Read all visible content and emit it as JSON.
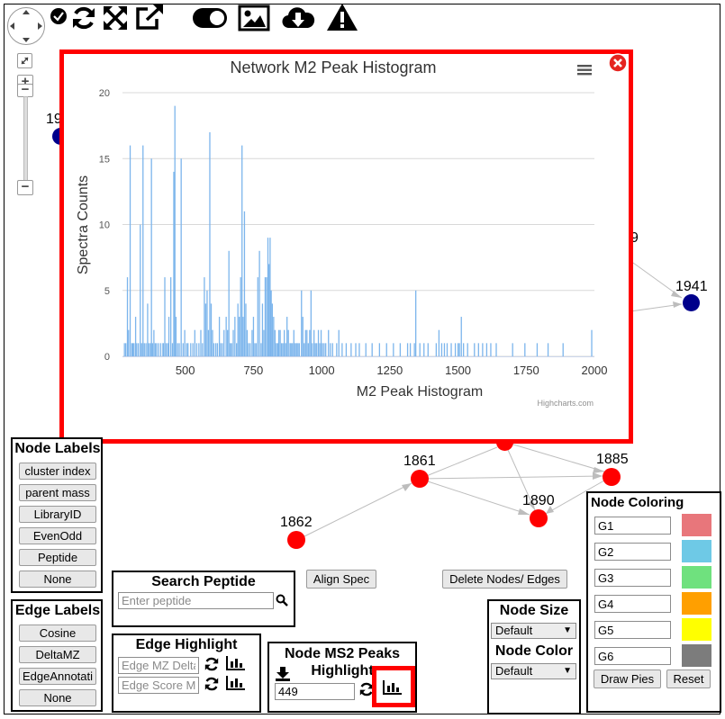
{
  "network": {
    "nodes": [
      {
        "label": "1941",
        "color": "#00008b"
      },
      {
        "label": "1861",
        "color": "#ff0000"
      },
      {
        "label": "1885",
        "color": "#ff0000"
      },
      {
        "label": "1890",
        "color": "#ff0000"
      },
      {
        "label": "1862",
        "color": "#ff0000"
      }
    ],
    "partial_labels": [
      "19",
      "9"
    ]
  },
  "toolbar": {
    "icons": [
      "pan-control-icon",
      "checkmark-icon",
      "refresh-icon",
      "expand-icon",
      "external-link-icon",
      "toggle-icon",
      "image-icon",
      "cloud-download-icon",
      "warning-icon"
    ]
  },
  "zoom": {
    "plus": "+",
    "minus": "−"
  },
  "histogram_popup": {
    "title": "Network M2 Peak Histogram",
    "credit": "Highcharts.com",
    "border_color": "#ff0000",
    "bar_color": "#7cb5ec"
  },
  "chart_data": {
    "type": "bar",
    "title": "Network M2 Peak Histogram",
    "xlabel": "M2 Peak Histogram",
    "ylabel": "Spectra Counts",
    "xlim": [
      270,
      2000
    ],
    "ylim": [
      0,
      20
    ],
    "xticks": [
      500,
      750,
      1000,
      1250,
      1500,
      1750,
      2000
    ],
    "yticks": [
      0,
      5,
      10,
      15,
      20
    ],
    "grid": true,
    "legend": "none",
    "bars": [
      [
        277,
        1
      ],
      [
        282,
        1
      ],
      [
        288,
        6
      ],
      [
        292,
        2
      ],
      [
        298,
        16
      ],
      [
        304,
        1
      ],
      [
        308,
        1
      ],
      [
        312,
        1
      ],
      [
        318,
        3
      ],
      [
        322,
        1
      ],
      [
        328,
        1
      ],
      [
        335,
        10
      ],
      [
        340,
        1
      ],
      [
        345,
        16
      ],
      [
        350,
        1
      ],
      [
        356,
        1
      ],
      [
        362,
        4
      ],
      [
        366,
        1
      ],
      [
        372,
        1
      ],
      [
        376,
        15
      ],
      [
        380,
        1
      ],
      [
        385,
        2
      ],
      [
        390,
        1
      ],
      [
        395,
        1
      ],
      [
        402,
        1
      ],
      [
        410,
        1
      ],
      [
        418,
        1
      ],
      [
        420,
        1
      ],
      [
        425,
        6
      ],
      [
        430,
        1
      ],
      [
        436,
        1
      ],
      [
        440,
        3
      ],
      [
        447,
        6
      ],
      [
        453,
        1
      ],
      [
        458,
        14
      ],
      [
        462,
        19
      ],
      [
        466,
        3
      ],
      [
        472,
        1
      ],
      [
        478,
        1
      ],
      [
        485,
        15
      ],
      [
        492,
        1
      ],
      [
        498,
        2
      ],
      [
        505,
        1
      ],
      [
        510,
        1
      ],
      [
        520,
        1
      ],
      [
        528,
        1
      ],
      [
        535,
        2
      ],
      [
        542,
        1
      ],
      [
        550,
        1
      ],
      [
        557,
        2
      ],
      [
        563,
        1
      ],
      [
        570,
        6
      ],
      [
        575,
        4
      ],
      [
        580,
        5
      ],
      [
        585,
        2
      ],
      [
        590,
        17
      ],
      [
        595,
        4
      ],
      [
        600,
        2
      ],
      [
        605,
        1
      ],
      [
        612,
        1
      ],
      [
        618,
        1
      ],
      [
        625,
        3
      ],
      [
        630,
        1
      ],
      [
        636,
        1
      ],
      [
        642,
        2
      ],
      [
        650,
        3
      ],
      [
        655,
        2
      ],
      [
        660,
        8
      ],
      [
        665,
        1
      ],
      [
        670,
        1
      ],
      [
        676,
        2
      ],
      [
        682,
        3
      ],
      [
        688,
        1
      ],
      [
        693,
        4
      ],
      [
        698,
        3
      ],
      [
        703,
        6
      ],
      [
        708,
        16
      ],
      [
        712,
        3
      ],
      [
        717,
        11
      ],
      [
        722,
        4
      ],
      [
        727,
        2
      ],
      [
        732,
        1
      ],
      [
        738,
        1
      ],
      [
        745,
        2
      ],
      [
        750,
        3
      ],
      [
        755,
        1
      ],
      [
        760,
        1
      ],
      [
        766,
        6
      ],
      [
        772,
        8
      ],
      [
        778,
        1
      ],
      [
        783,
        4
      ],
      [
        788,
        2
      ],
      [
        793,
        6
      ],
      [
        798,
        6
      ],
      [
        803,
        9
      ],
      [
        807,
        7
      ],
      [
        811,
        9
      ],
      [
        815,
        5
      ],
      [
        819,
        4
      ],
      [
        824,
        3
      ],
      [
        829,
        2
      ],
      [
        834,
        1
      ],
      [
        839,
        1
      ],
      [
        843,
        2
      ],
      [
        848,
        2
      ],
      [
        853,
        1
      ],
      [
        858,
        1
      ],
      [
        863,
        2
      ],
      [
        868,
        1
      ],
      [
        873,
        3
      ],
      [
        878,
        2
      ],
      [
        884,
        1
      ],
      [
        888,
        1
      ],
      [
        893,
        1
      ],
      [
        898,
        2
      ],
      [
        903,
        1
      ],
      [
        908,
        1
      ],
      [
        913,
        1
      ],
      [
        918,
        1
      ],
      [
        926,
        5
      ],
      [
        931,
        3
      ],
      [
        936,
        1
      ],
      [
        941,
        2
      ],
      [
        946,
        2
      ],
      [
        951,
        1
      ],
      [
        956,
        2
      ],
      [
        961,
        5
      ],
      [
        966,
        1
      ],
      [
        972,
        2
      ],
      [
        977,
        1
      ],
      [
        982,
        1
      ],
      [
        988,
        2
      ],
      [
        993,
        1
      ],
      [
        998,
        2
      ],
      [
        1003,
        1
      ],
      [
        1009,
        1
      ],
      [
        1015,
        1
      ],
      [
        1025,
        2
      ],
      [
        1032,
        1
      ],
      [
        1040,
        1
      ],
      [
        1055,
        1
      ],
      [
        1063,
        2
      ],
      [
        1075,
        1
      ],
      [
        1090,
        1
      ],
      [
        1108,
        1
      ],
      [
        1125,
        1
      ],
      [
        1138,
        1
      ],
      [
        1162,
        1
      ],
      [
        1185,
        1
      ],
      [
        1212,
        1
      ],
      [
        1238,
        1
      ],
      [
        1263,
        1
      ],
      [
        1288,
        1
      ],
      [
        1315,
        1
      ],
      [
        1325,
        1
      ],
      [
        1340,
        1
      ],
      [
        1345,
        5
      ],
      [
        1360,
        1
      ],
      [
        1375,
        1
      ],
      [
        1390,
        1
      ],
      [
        1420,
        1
      ],
      [
        1430,
        2
      ],
      [
        1440,
        1
      ],
      [
        1450,
        1
      ],
      [
        1460,
        1
      ],
      [
        1475,
        1
      ],
      [
        1490,
        1
      ],
      [
        1500,
        1
      ],
      [
        1505,
        1
      ],
      [
        1512,
        3
      ],
      [
        1520,
        1
      ],
      [
        1535,
        1
      ],
      [
        1560,
        1
      ],
      [
        1575,
        1
      ],
      [
        1590,
        1
      ],
      [
        1605,
        1
      ],
      [
        1620,
        1
      ],
      [
        1640,
        1
      ],
      [
        1700,
        1
      ],
      [
        1745,
        1
      ],
      [
        1790,
        1
      ],
      [
        1830,
        1
      ],
      [
        1885,
        1
      ],
      [
        1990,
        2
      ]
    ]
  },
  "node_labels_panel": {
    "title": "Node Labels",
    "buttons": [
      "cluster index",
      "parent mass",
      "LibraryID",
      "EvenOdd",
      "Peptide",
      "None"
    ]
  },
  "edge_labels_panel": {
    "title": "Edge Labels",
    "buttons": [
      "Cosine",
      "DeltaMZ",
      "EdgeAnnotati",
      "None"
    ]
  },
  "search_peptide": {
    "title": "Search Peptide",
    "placeholder": "Enter peptide"
  },
  "align_spec": {
    "label": "Align Spec"
  },
  "delete_nodes": {
    "label": "Delete Nodes/ Edges"
  },
  "edge_highlight": {
    "title": "Edge Highlight",
    "mz_placeholder": "Edge MZ Delta",
    "score_placeholder": "Edge Score Mi"
  },
  "node_ms2": {
    "title_line1": "Node MS2 Peaks",
    "title_line2": "Highlight",
    "value": "449"
  },
  "node_size": {
    "title": "Node Size",
    "selected": "Default"
  },
  "node_color": {
    "title": "Node Color",
    "selected": "Default"
  },
  "node_coloring": {
    "title": "Node Coloring",
    "groups": [
      {
        "name": "G1",
        "color": "#e8767b"
      },
      {
        "name": "G2",
        "color": "#6ec9e6"
      },
      {
        "name": "G3",
        "color": "#6fe17e"
      },
      {
        "name": "G4",
        "color": "#ff9f00"
      },
      {
        "name": "G5",
        "color": "#ffff00"
      },
      {
        "name": "G6",
        "color": "#7c7c7c"
      }
    ],
    "draw_pies": "Draw Pies",
    "reset": "Reset"
  },
  "highlight_box_color": "#ff0000"
}
